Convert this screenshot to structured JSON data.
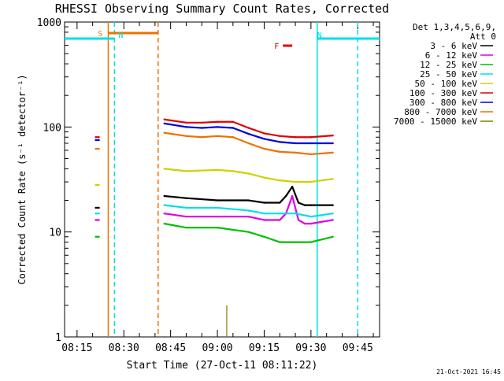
{
  "chart_data": {
    "type": "line",
    "title": "RHESSI Observing Summary Count Rates, Corrected",
    "xlabel": "Start Time (27-Oct-11 08:11:22)",
    "ylabel": "Corrected Count Rate (s⁻¹ detector⁻¹)",
    "y_scale": "log",
    "ylim": [
      1,
      1000
    ],
    "xlim": [
      "08:11",
      "09:52"
    ],
    "x_ticks": [
      "08:15",
      "08:30",
      "08:45",
      "09:00",
      "09:15",
      "09:30",
      "09:45"
    ],
    "y_ticks": [
      "1",
      "10",
      "100",
      "1000"
    ],
    "grid": false,
    "legend_header": [
      "Det 1,3,4,5,6,9,",
      "Att 0"
    ],
    "legend_position": "top-right",
    "footer_date": "21-Oct-2021 16:45",
    "series": [
      {
        "name": "3 - 6 keV",
        "color": "#000000",
        "x": [
          "08:21",
          "08:22",
          "08:43",
          "08:50",
          "09:00",
          "09:10",
          "09:15",
          "09:20",
          "09:22",
          "09:24",
          "09:26",
          "09:28",
          "09:30",
          "09:37"
        ],
        "y": [
          17,
          17,
          22,
          21,
          20,
          20,
          19,
          19,
          22,
          27,
          19,
          18,
          18,
          18
        ]
      },
      {
        "name": "6 - 12 keV",
        "color": "#e000e0",
        "x": [
          "08:21",
          "08:22",
          "08:43",
          "08:50",
          "09:00",
          "09:10",
          "09:15",
          "09:20",
          "09:22",
          "09:24",
          "09:26",
          "09:28",
          "09:30",
          "09:37"
        ],
        "y": [
          13,
          13,
          15,
          14,
          14,
          14,
          13,
          13,
          15,
          22,
          13,
          12,
          12,
          13
        ]
      },
      {
        "name": "12 - 25 keV",
        "color": "#00c000",
        "x": [
          "08:21",
          "08:22",
          "08:43",
          "08:50",
          "09:00",
          "09:10",
          "09:15",
          "09:20",
          "09:25",
          "09:30",
          "09:37"
        ],
        "y": [
          9,
          9,
          12,
          11,
          11,
          10,
          9,
          8,
          8,
          8,
          9
        ]
      },
      {
        "name": "25 - 50 keV",
        "color": "#00e0e0",
        "x": [
          "08:21",
          "08:22",
          "08:43",
          "08:50",
          "09:00",
          "09:10",
          "09:15",
          "09:20",
          "09:25",
          "09:30",
          "09:37"
        ],
        "y": [
          15,
          15,
          18,
          17,
          17,
          16,
          15,
          15,
          15,
          14,
          15
        ]
      },
      {
        "name": "50 - 100 keV",
        "color": "#d0d000",
        "x": [
          "08:21",
          "08:22",
          "08:43",
          "08:50",
          "09:00",
          "09:05",
          "09:10",
          "09:15",
          "09:20",
          "09:25",
          "09:30",
          "09:37"
        ],
        "y": [
          28,
          28,
          40,
          38,
          39,
          38,
          36,
          33,
          31,
          30,
          30,
          32
        ]
      },
      {
        "name": "100 - 300 keV",
        "color": "#e00000",
        "x": [
          "08:21",
          "08:22",
          "08:43",
          "08:50",
          "08:55",
          "09:00",
          "09:05",
          "09:10",
          "09:15",
          "09:20",
          "09:25",
          "09:30",
          "09:37"
        ],
        "y": [
          80,
          80,
          118,
          110,
          110,
          112,
          112,
          98,
          87,
          82,
          80,
          80,
          83
        ]
      },
      {
        "name": "300 - 800 keV",
        "color": "#0000e0",
        "x": [
          "08:21",
          "08:22",
          "08:43",
          "08:50",
          "08:55",
          "09:00",
          "09:05",
          "09:10",
          "09:15",
          "09:20",
          "09:25",
          "09:30",
          "09:37"
        ],
        "y": [
          75,
          75,
          108,
          100,
          98,
          100,
          98,
          86,
          77,
          72,
          70,
          70,
          70
        ]
      },
      {
        "name": "800 - 7000 keV",
        "color": "#f07000",
        "x": [
          "08:21",
          "08:22",
          "08:43",
          "08:50",
          "08:55",
          "09:00",
          "09:05",
          "09:10",
          "09:15",
          "09:20",
          "09:25",
          "09:30",
          "09:37"
        ],
        "y": [
          62,
          62,
          88,
          82,
          80,
          82,
          80,
          70,
          62,
          58,
          57,
          55,
          57
        ]
      },
      {
        "name": "7000 - 15000 keV",
        "color": "#808000",
        "x": [
          "09:03"
        ],
        "y": [
          2
        ]
      }
    ],
    "flags": [
      {
        "name": "S",
        "color": "#f07000",
        "x0": "08:25",
        "x1": "08:41"
      },
      {
        "name": "N",
        "color": "#00e0e0",
        "x0": "08:11",
        "x1": "08:27"
      },
      {
        "name": "N",
        "color": "#00e0e0",
        "x0": "09:32",
        "x1": "09:52"
      },
      {
        "name": "F",
        "color": "#e00000",
        "x0": "09:21",
        "x1": "09:24"
      }
    ],
    "vertical_markers": [
      {
        "x": "08:25",
        "color": "#f07000",
        "style": "solid"
      },
      {
        "x": "08:27",
        "color": "#00e0e0",
        "style": "dashed"
      },
      {
        "x": "08:41",
        "color": "#f07000",
        "style": "dashed"
      },
      {
        "x": "09:32",
        "color": "#00e0e0",
        "style": "solid"
      },
      {
        "x": "09:45",
        "color": "#00e0e0",
        "style": "dashed"
      }
    ]
  }
}
